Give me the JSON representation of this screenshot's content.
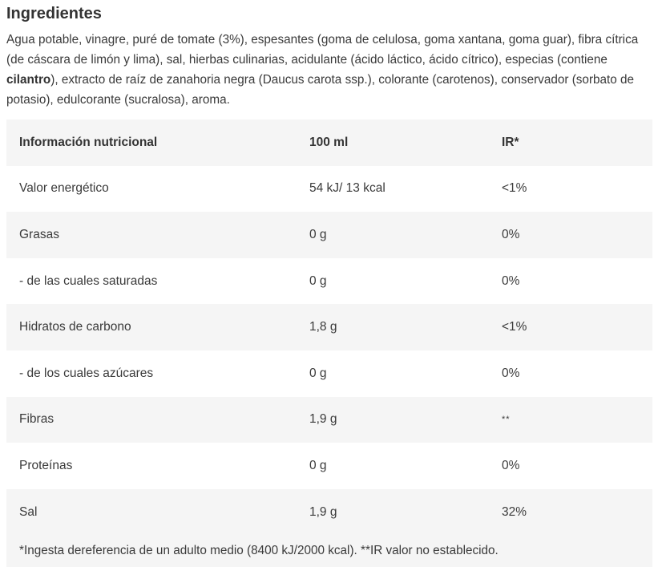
{
  "ingredients": {
    "title": "Ingredientes",
    "text_before": "Agua potable, vinagre, puré de tomate (3%), espesantes (goma de celulosa, goma xantana, goma guar), fibra cítrica (de cáscara de limón y lima), sal, hierbas culinarias, acidulante (ácido láctico, ácido cítrico), especias (contiene ",
    "highlight": "cilantro",
    "text_after": "), extracto de raíz de zanahoria negra (Daucus carota ssp.), colorante (carotenos), conservador (sorbato de potasio), edulcorante (sucralosa), aroma."
  },
  "nutrition": {
    "headers": [
      "Información nutricional",
      "100 ml",
      "IR*"
    ],
    "rows": [
      {
        "name": "Valor energético",
        "per100": "54 kJ/ 13 kcal",
        "ir": "<1%"
      },
      {
        "name": "Grasas",
        "per100": "0 g",
        "ir": "0%"
      },
      {
        "name": "- de las cuales saturadas",
        "per100": "0 g",
        "ir": "0%"
      },
      {
        "name": "Hidratos de carbono",
        "per100": "1,8 g",
        "ir": "<1%"
      },
      {
        "name": "- de los cuales azúcares",
        "per100": "0 g",
        "ir": "0%"
      },
      {
        "name": "Fibras",
        "per100": "1,9 g",
        "ir": "**"
      },
      {
        "name": "Proteínas",
        "per100": "0 g",
        "ir": "0%"
      },
      {
        "name": "Sal",
        "per100": "1,9 g",
        "ir": "32%"
      }
    ],
    "footnote": "*Ingesta dereferencia de un adulto medio (8400 kJ/2000 kcal). **IR valor no establecido."
  }
}
